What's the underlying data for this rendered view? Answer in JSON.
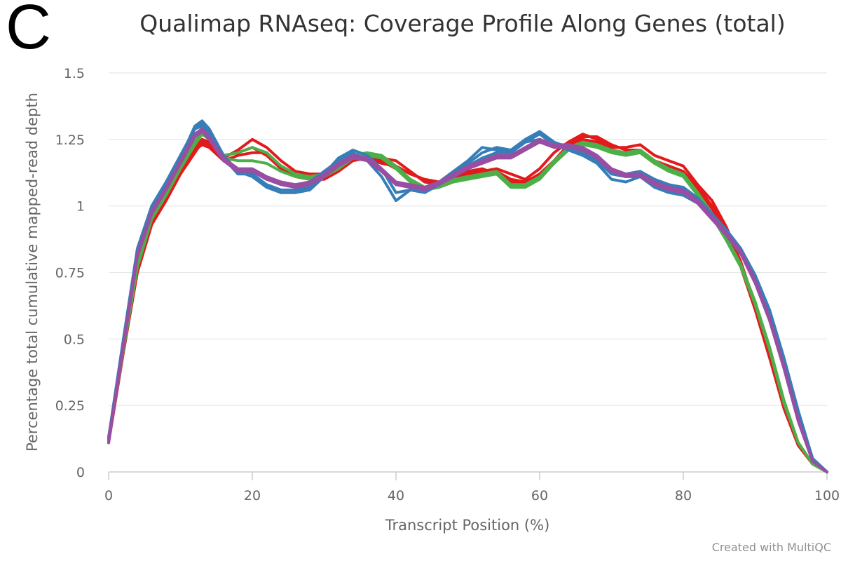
{
  "panel_letter": "C",
  "credit": "Created with MultiQC",
  "colors": {
    "red": "#e31a1c",
    "green": "#4daf4a",
    "blue": "#377eb8",
    "purple": "#984ea3",
    "grid": "#e6e6e6",
    "axis": "#cccccc"
  },
  "chart_data": {
    "type": "line",
    "title": "Qualimap RNAseq: Coverage Profile Along Genes (total)",
    "xlabel": "Transcript Position (%)",
    "ylabel": "Percentage total cumulative mapped-read depth",
    "xlim": [
      0,
      100
    ],
    "ylim": [
      0,
      1.5
    ],
    "xticks": [
      "0",
      "20",
      "40",
      "60",
      "80",
      "100"
    ],
    "yticks": [
      "0",
      "0.25",
      "0.5",
      "0.75",
      "1",
      "1.25",
      "1.5"
    ],
    "grid": true,
    "legend": "none",
    "x": [
      0,
      2,
      4,
      5,
      6,
      8,
      10,
      12,
      13,
      14,
      16,
      18,
      20,
      22,
      24,
      26,
      28,
      30,
      32,
      34,
      36,
      38,
      40,
      42,
      44,
      46,
      48,
      50,
      52,
      54,
      56,
      58,
      60,
      62,
      64,
      66,
      68,
      70,
      72,
      74,
      76,
      78,
      80,
      82,
      84,
      86,
      88,
      90,
      92,
      94,
      96,
      98,
      100
    ],
    "series": [
      {
        "color": "#e31a1c",
        "values": [
          0.12,
          0.45,
          0.76,
          0.85,
          0.94,
          1.03,
          1.13,
          1.21,
          1.23,
          1.22,
          1.17,
          1.19,
          1.2,
          1.2,
          1.15,
          1.12,
          1.11,
          1.11,
          1.14,
          1.18,
          1.19,
          1.17,
          1.14,
          1.1,
          1.07,
          1.08,
          1.1,
          1.11,
          1.12,
          1.13,
          1.1,
          1.09,
          1.12,
          1.17,
          1.23,
          1.26,
          1.26,
          1.23,
          1.21,
          1.21,
          1.17,
          1.15,
          1.13,
          1.07,
          1.0,
          0.9,
          0.78,
          0.62,
          0.44,
          0.24,
          0.1,
          0.03,
          0.0
        ]
      },
      {
        "color": "#e31a1c",
        "values": [
          0.11,
          0.44,
          0.75,
          0.84,
          0.93,
          1.02,
          1.12,
          1.2,
          1.24,
          1.23,
          1.18,
          1.21,
          1.25,
          1.22,
          1.17,
          1.13,
          1.12,
          1.12,
          1.15,
          1.19,
          1.2,
          1.18,
          1.17,
          1.13,
          1.09,
          1.08,
          1.1,
          1.12,
          1.13,
          1.14,
          1.12,
          1.1,
          1.14,
          1.2,
          1.24,
          1.27,
          1.25,
          1.22,
          1.22,
          1.23,
          1.19,
          1.17,
          1.15,
          1.08,
          1.02,
          0.92,
          0.79,
          0.63,
          0.45,
          0.25,
          0.11,
          0.03,
          0.0
        ]
      },
      {
        "color": "#e31a1c",
        "values": [
          0.13,
          0.46,
          0.77,
          0.86,
          0.95,
          1.04,
          1.14,
          1.22,
          1.25,
          1.24,
          1.19,
          1.2,
          1.22,
          1.19,
          1.14,
          1.11,
          1.1,
          1.1,
          1.13,
          1.17,
          1.18,
          1.16,
          1.15,
          1.12,
          1.1,
          1.09,
          1.11,
          1.13,
          1.14,
          1.12,
          1.09,
          1.08,
          1.11,
          1.16,
          1.22,
          1.25,
          1.24,
          1.21,
          1.2,
          1.2,
          1.16,
          1.14,
          1.12,
          1.06,
          0.99,
          0.89,
          0.77,
          0.61,
          0.43,
          0.24,
          0.1,
          0.03,
          0.0
        ]
      },
      {
        "color": "#4daf4a",
        "values": [
          0.12,
          0.45,
          0.77,
          0.86,
          0.95,
          1.04,
          1.14,
          1.23,
          1.27,
          1.25,
          1.19,
          1.2,
          1.22,
          1.2,
          1.15,
          1.12,
          1.11,
          1.12,
          1.15,
          1.19,
          1.2,
          1.19,
          1.15,
          1.1,
          1.07,
          1.08,
          1.1,
          1.11,
          1.12,
          1.13,
          1.08,
          1.08,
          1.11,
          1.17,
          1.22,
          1.24,
          1.23,
          1.21,
          1.2,
          1.21,
          1.17,
          1.14,
          1.12,
          1.05,
          0.97,
          0.88,
          0.78,
          0.64,
          0.47,
          0.27,
          0.11,
          0.03,
          0.0
        ]
      },
      {
        "color": "#4daf4a",
        "values": [
          0.13,
          0.46,
          0.78,
          0.87,
          0.96,
          1.05,
          1.15,
          1.24,
          1.28,
          1.26,
          1.18,
          1.17,
          1.17,
          1.16,
          1.13,
          1.11,
          1.1,
          1.11,
          1.14,
          1.18,
          1.19,
          1.18,
          1.14,
          1.09,
          1.06,
          1.07,
          1.09,
          1.1,
          1.11,
          1.12,
          1.07,
          1.07,
          1.1,
          1.16,
          1.21,
          1.23,
          1.22,
          1.2,
          1.19,
          1.2,
          1.16,
          1.13,
          1.11,
          1.04,
          0.96,
          0.87,
          0.77,
          0.63,
          0.46,
          0.26,
          0.11,
          0.03,
          0.0
        ]
      },
      {
        "color": "#377eb8",
        "values": [
          0.11,
          0.47,
          0.82,
          0.9,
          0.98,
          1.07,
          1.17,
          1.29,
          1.31,
          1.28,
          1.18,
          1.12,
          1.12,
          1.08,
          1.06,
          1.06,
          1.07,
          1.12,
          1.18,
          1.21,
          1.19,
          1.14,
          1.05,
          1.06,
          1.05,
          1.08,
          1.12,
          1.16,
          1.2,
          1.22,
          1.21,
          1.25,
          1.28,
          1.24,
          1.22,
          1.2,
          1.17,
          1.12,
          1.11,
          1.12,
          1.08,
          1.06,
          1.05,
          1.02,
          0.96,
          0.9,
          0.83,
          0.73,
          0.6,
          0.42,
          0.22,
          0.05,
          0.0
        ]
      },
      {
        "color": "#377eb8",
        "values": [
          0.12,
          0.48,
          0.83,
          0.91,
          0.99,
          1.08,
          1.18,
          1.3,
          1.32,
          1.29,
          1.19,
          1.13,
          1.11,
          1.07,
          1.05,
          1.05,
          1.06,
          1.11,
          1.17,
          1.2,
          1.17,
          1.11,
          1.02,
          1.06,
          1.07,
          1.09,
          1.13,
          1.17,
          1.22,
          1.21,
          1.2,
          1.24,
          1.27,
          1.23,
          1.21,
          1.19,
          1.16,
          1.1,
          1.09,
          1.11,
          1.07,
          1.05,
          1.04,
          1.01,
          0.95,
          0.89,
          0.82,
          0.72,
          0.6,
          0.42,
          0.22,
          0.05,
          0.0
        ]
      },
      {
        "color": "#377eb8",
        "values": [
          0.13,
          0.49,
          0.84,
          0.92,
          1.0,
          1.09,
          1.19,
          1.29,
          1.3,
          1.27,
          1.17,
          1.13,
          1.13,
          1.1,
          1.08,
          1.08,
          1.09,
          1.13,
          1.17,
          1.19,
          1.18,
          1.13,
          1.08,
          1.07,
          1.06,
          1.09,
          1.12,
          1.15,
          1.18,
          1.2,
          1.2,
          1.24,
          1.25,
          1.23,
          1.22,
          1.21,
          1.18,
          1.13,
          1.12,
          1.13,
          1.1,
          1.08,
          1.07,
          1.03,
          0.97,
          0.91,
          0.84,
          0.74,
          0.61,
          0.43,
          0.23,
          0.05,
          0.0
        ]
      },
      {
        "color": "#984ea3",
        "values": [
          0.12,
          0.47,
          0.82,
          0.9,
          0.98,
          1.07,
          1.17,
          1.27,
          1.29,
          1.26,
          1.18,
          1.14,
          1.14,
          1.11,
          1.09,
          1.08,
          1.09,
          1.12,
          1.16,
          1.19,
          1.18,
          1.14,
          1.09,
          1.08,
          1.07,
          1.09,
          1.12,
          1.15,
          1.17,
          1.19,
          1.19,
          1.22,
          1.25,
          1.23,
          1.23,
          1.22,
          1.19,
          1.14,
          1.12,
          1.12,
          1.09,
          1.07,
          1.06,
          1.02,
          0.96,
          0.9,
          0.83,
          0.72,
          0.58,
          0.4,
          0.2,
          0.04,
          0.0
        ]
      },
      {
        "color": "#984ea3",
        "values": [
          0.11,
          0.46,
          0.81,
          0.89,
          0.97,
          1.06,
          1.16,
          1.26,
          1.28,
          1.25,
          1.17,
          1.13,
          1.13,
          1.1,
          1.08,
          1.07,
          1.08,
          1.11,
          1.15,
          1.18,
          1.17,
          1.13,
          1.08,
          1.07,
          1.06,
          1.08,
          1.11,
          1.14,
          1.16,
          1.18,
          1.18,
          1.21,
          1.24,
          1.22,
          1.22,
          1.21,
          1.18,
          1.13,
          1.11,
          1.11,
          1.08,
          1.06,
          1.05,
          1.01,
          0.95,
          0.89,
          0.82,
          0.71,
          0.57,
          0.39,
          0.19,
          0.04,
          0.0
        ]
      }
    ]
  }
}
